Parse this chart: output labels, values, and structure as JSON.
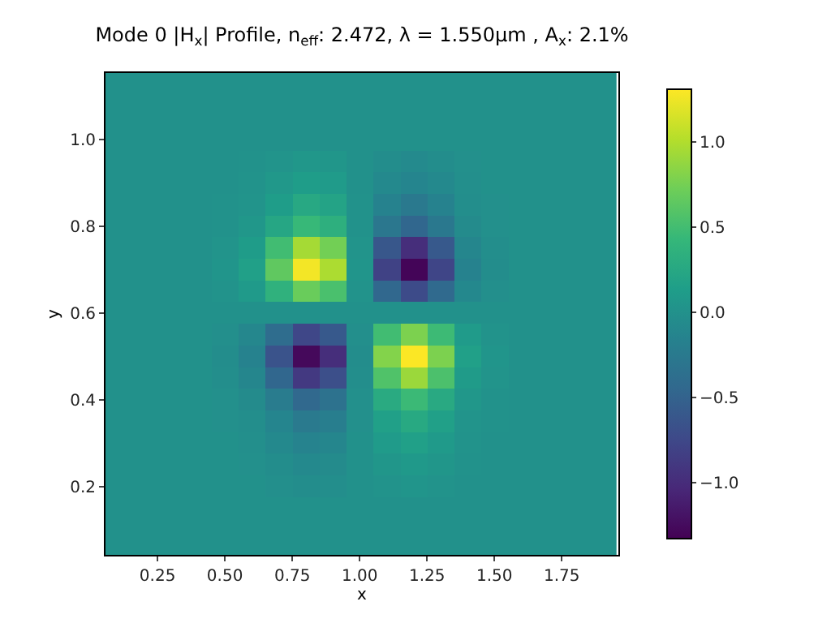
{
  "chart_data": {
    "type": "heatmap",
    "title": "Mode 0 |H$_{x}$| Profile, n$_{eff}$: 2.472, λ = 1.550μm , A$_{x}$: 2.1%",
    "xlabel": "x",
    "ylabel": "y",
    "x": [
      0.1,
      0.2,
      0.3,
      0.4,
      0.5,
      0.6,
      0.7,
      0.8,
      0.9,
      1.0,
      1.1,
      1.2,
      1.3,
      1.4,
      1.5,
      1.6,
      1.7,
      1.8,
      1.9
    ],
    "y": [
      1.15,
      1.1,
      1.05,
      1.0,
      0.95,
      0.9,
      0.85,
      0.8,
      0.75,
      0.7,
      0.65,
      0.6,
      0.55,
      0.5,
      0.45,
      0.4,
      0.35,
      0.3,
      0.25,
      0.2,
      0.15,
      0.1,
      0.05
    ],
    "cells": [
      [
        0,
        0,
        0,
        0,
        0,
        0,
        0,
        0,
        0,
        0,
        0,
        0,
        0,
        0,
        0,
        0,
        0,
        0,
        0
      ],
      [
        0,
        0,
        0,
        0,
        0,
        0,
        0,
        0,
        0,
        0,
        0,
        0,
        0,
        0,
        0,
        0,
        0,
        0,
        0
      ],
      [
        0,
        0,
        0,
        0,
        0,
        0,
        0,
        0,
        0,
        0,
        0,
        0,
        0,
        0,
        0,
        0,
        0,
        0,
        0
      ],
      [
        0,
        0,
        0,
        0,
        0,
        0,
        0,
        0,
        0,
        0,
        0,
        0,
        0,
        0,
        0,
        0,
        0,
        0,
        0
      ],
      [
        0,
        0,
        0,
        0,
        0,
        0.01,
        0.03,
        0.06,
        0.05,
        0,
        -0.04,
        -0.07,
        -0.04,
        -0.01,
        0,
        0,
        0,
        0,
        0
      ],
      [
        0,
        0,
        0,
        0,
        0,
        0.02,
        0.07,
        0.13,
        0.1,
        0,
        -0.08,
        -0.13,
        -0.08,
        -0.02,
        0,
        0,
        0,
        0,
        0
      ],
      [
        0,
        0,
        0,
        0,
        0.01,
        0.03,
        0.13,
        0.25,
        0.2,
        0.01,
        -0.16,
        -0.26,
        -0.16,
        -0.03,
        -0.01,
        0,
        0,
        0,
        0
      ],
      [
        0,
        0,
        0,
        0,
        0.01,
        0.06,
        0.23,
        0.44,
        0.34,
        0.01,
        -0.28,
        -0.46,
        -0.27,
        -0.06,
        -0.01,
        0,
        0,
        0,
        0
      ],
      [
        0,
        0,
        0,
        0,
        0.03,
        0.12,
        0.49,
        0.95,
        0.74,
        0.03,
        -0.61,
        -0.98,
        -0.59,
        -0.12,
        -0.03,
        0,
        0,
        0,
        0
      ],
      [
        0,
        0,
        0,
        0,
        0.04,
        0.16,
        0.65,
        1.27,
        0.98,
        0.04,
        -0.81,
        -1.3,
        -0.78,
        -0.16,
        -0.04,
        0,
        0,
        0,
        0
      ],
      [
        0,
        0,
        0,
        0,
        0.02,
        0.09,
        0.36,
        0.7,
        0.54,
        0.02,
        -0.45,
        -0.72,
        -0.43,
        -0.09,
        -0.02,
        0,
        0,
        0,
        0
      ],
      [
        0,
        0,
        0,
        0,
        0,
        0,
        0,
        0,
        0,
        0,
        0,
        0,
        0,
        0,
        0,
        0,
        0,
        0,
        0
      ],
      [
        0,
        0,
        0,
        0,
        -0.02,
        -0.1,
        -0.39,
        -0.76,
        -0.59,
        -0.02,
        0.49,
        0.78,
        0.47,
        0.1,
        0.02,
        0,
        0,
        0,
        0
      ],
      [
        0,
        0,
        0,
        0,
        -0.04,
        -0.16,
        -0.65,
        -1.27,
        -0.98,
        -0.04,
        0.81,
        1.3,
        0.78,
        0.16,
        0.04,
        0,
        0,
        0,
        0
      ],
      [
        0,
        0,
        0,
        0,
        -0.03,
        -0.11,
        -0.46,
        -0.89,
        -0.69,
        -0.03,
        0.57,
        0.91,
        0.55,
        0.11,
        0.03,
        0,
        0,
        0,
        0
      ],
      [
        0,
        0,
        0,
        0,
        -0.01,
        -0.06,
        -0.23,
        -0.44,
        -0.34,
        -0.01,
        0.28,
        0.46,
        0.27,
        0.06,
        0.01,
        0,
        0,
        0,
        0
      ],
      [
        0,
        0,
        0,
        0,
        -0.01,
        -0.03,
        -0.13,
        -0.25,
        -0.2,
        -0.01,
        0.16,
        0.26,
        0.16,
        0.03,
        0.01,
        0,
        0,
        0,
        0
      ],
      [
        0,
        0,
        0,
        0,
        0,
        -0.02,
        -0.08,
        -0.15,
        -0.12,
        0,
        0.1,
        0.16,
        0.09,
        0.02,
        0,
        0,
        0,
        0,
        0
      ],
      [
        0,
        0,
        0,
        0,
        0,
        -0.01,
        -0.04,
        -0.08,
        -0.06,
        0,
        0.05,
        0.08,
        0.05,
        0.01,
        0,
        0,
        0,
        0,
        0
      ],
      [
        0,
        0,
        0,
        0,
        0,
        0,
        -0.02,
        -0.04,
        -0.03,
        0,
        0.02,
        0.04,
        0.02,
        0,
        0,
        0,
        0,
        0,
        0
      ],
      [
        0,
        0,
        0,
        0,
        0,
        0,
        0,
        0,
        0,
        0,
        0,
        0,
        0,
        0,
        0,
        0,
        0,
        0,
        0
      ],
      [
        0,
        0,
        0,
        0,
        0,
        0,
        0,
        0,
        0,
        0,
        0,
        0,
        0,
        0,
        0,
        0,
        0,
        0,
        0
      ],
      [
        0,
        0,
        0,
        0,
        0,
        0,
        0,
        0,
        0,
        0,
        0,
        0,
        0,
        0,
        0,
        0,
        0,
        0,
        0
      ]
    ],
    "clim": [
      -1.33,
      1.31
    ],
    "cticks": [
      {
        "value": -1.0,
        "label": "−1.0"
      },
      {
        "value": -0.5,
        "label": "−0.5"
      },
      {
        "value": 0,
        "label": "0.0"
      },
      {
        "value": 0.5,
        "label": "0.5"
      },
      {
        "value": 1.0,
        "label": "1.0"
      }
    ],
    "xlim": [
      0.057,
      1.96
    ],
    "xticks": [
      {
        "value": 0.25,
        "label": "0.25"
      },
      {
        "value": 0.5,
        "label": "0.50"
      },
      {
        "value": 0.75,
        "label": "0.75"
      },
      {
        "value": 1.0,
        "label": "1.00"
      },
      {
        "value": 1.25,
        "label": "1.25"
      },
      {
        "value": 1.5,
        "label": "1.50"
      },
      {
        "value": 1.75,
        "label": "1.75"
      }
    ],
    "ylim": [
      0.043,
      1.154
    ],
    "yticks": [
      0.2,
      0.4,
      0.6,
      0.8,
      {
        "value": 1.0,
        "label": "1.0"
      }
    ]
  }
}
